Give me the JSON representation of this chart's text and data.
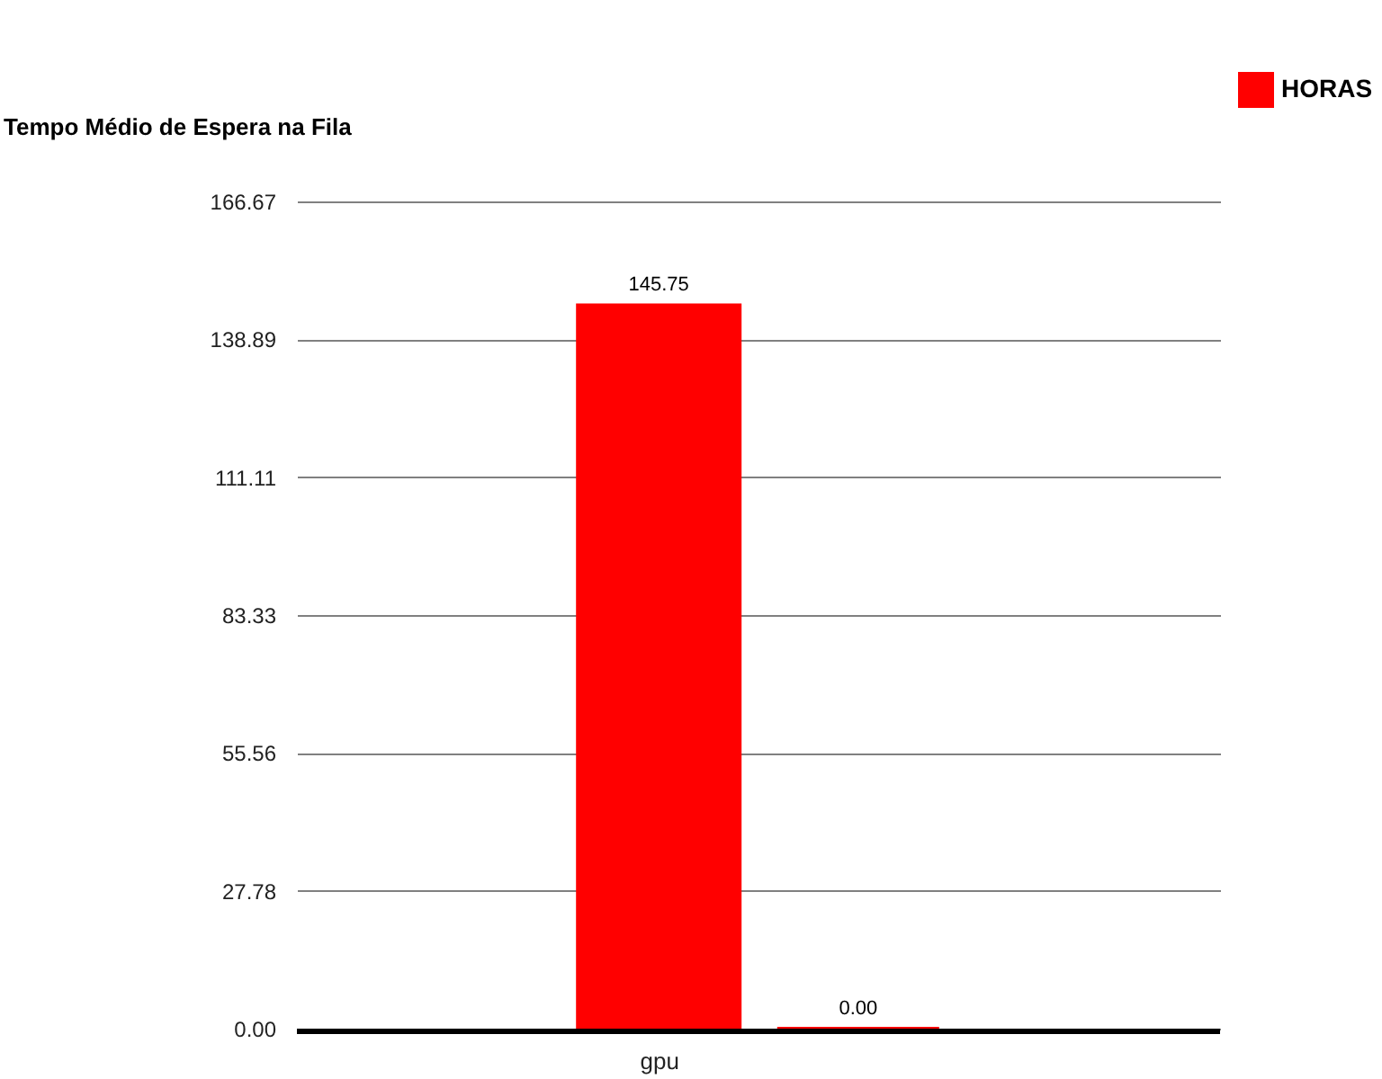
{
  "chart_data": {
    "type": "bar",
    "title": "Tempo Médio de Espera na Fila",
    "categories": [
      "gpu",
      null
    ],
    "series": [
      {
        "name": "HORAS",
        "color": "#ff0000",
        "values": [
          145.75,
          0
        ],
        "value_labels": [
          "145.75",
          "0.00"
        ]
      }
    ],
    "ylim": [
      0,
      166.67
    ],
    "yticks": [
      {
        "value": 0,
        "label": "0.00"
      },
      27.78,
      55.56,
      83.33,
      111.11,
      138.89,
      166.67
    ],
    "grid": "y",
    "legend": "top right"
  }
}
